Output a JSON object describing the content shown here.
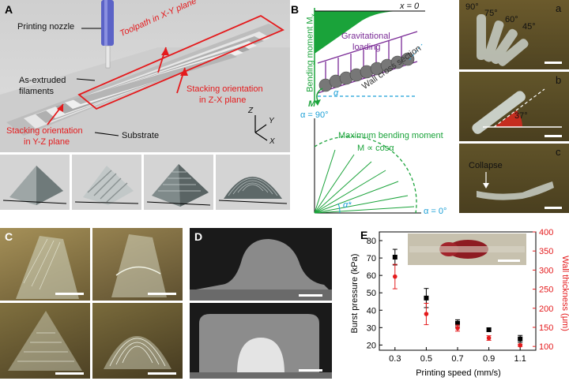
{
  "panelA": {
    "letter": "A",
    "nozzle": "Printing nozzle",
    "toolpath": "Toolpath in X-Y plane",
    "filaments_line1": "As-extruded",
    "filaments_line2": "filaments",
    "stacking_zx_line1": "Stacking orientation",
    "stacking_zx_line2": "in Z-X plane",
    "stacking_yz_line1": "Stacking orientation",
    "stacking_yz_line2": "in Y-Z plane",
    "substrate": "Substrate",
    "axis_z": "Z",
    "axis_y": "Y",
    "axis_x": "X"
  },
  "panelB": {
    "letter": "B",
    "x0": "x = 0",
    "bending_moment": "Bending moment M",
    "bending_sub": "x",
    "grav_line1": "Gravitational",
    "grav_line2": "loading",
    "wall": "Wall cross section",
    "alpha": "α",
    "m": "M",
    "alpha90": "α = 90°",
    "max_line1": "Maximum bending moment",
    "max_line2": "M ∝ cosα",
    "alpha_star": "α*",
    "alpha0": "α = 0°"
  },
  "photos": {
    "a_letter": "a",
    "b_letter": "b",
    "c_letter": "c",
    "angles": [
      "90°",
      "75°",
      "60°",
      "45°"
    ],
    "angle_b": "37°",
    "collapse": "Collapse"
  },
  "panelC": {
    "letter": "C"
  },
  "panelD": {
    "letter": "D"
  },
  "panelE": {
    "letter": "E"
  },
  "chart_data": {
    "type": "scatter",
    "xlabel": "Printing speed (mm/s)",
    "ylabel": "Burst pressure (kPa)",
    "y2label": "Wall thickness (μm)",
    "x": [
      0.3,
      0.5,
      0.7,
      0.9,
      1.1
    ],
    "xticks": [
      "0.3",
      "0.5",
      "0.7",
      "0.9",
      "1.1"
    ],
    "ylim": [
      17,
      85
    ],
    "yticks": [
      "20",
      "30",
      "40",
      "50",
      "60",
      "70",
      "80"
    ],
    "y2lim": [
      90,
      400
    ],
    "y2ticks": [
      "100",
      "150",
      "200",
      "250",
      "300",
      "350",
      "400"
    ],
    "series": [
      {
        "axis": "left",
        "color": "#000000",
        "values": [
          70.5,
          47,
          32.5,
          28.8,
          23.5
        ],
        "errors": [
          4.5,
          5.5,
          2,
          1,
          2
        ]
      },
      {
        "axis": "right",
        "color": "#e41a1c",
        "values": [
          283,
          185,
          148,
          122,
          103
        ],
        "errors": [
          32,
          28,
          8,
          6,
          3
        ]
      }
    ]
  }
}
